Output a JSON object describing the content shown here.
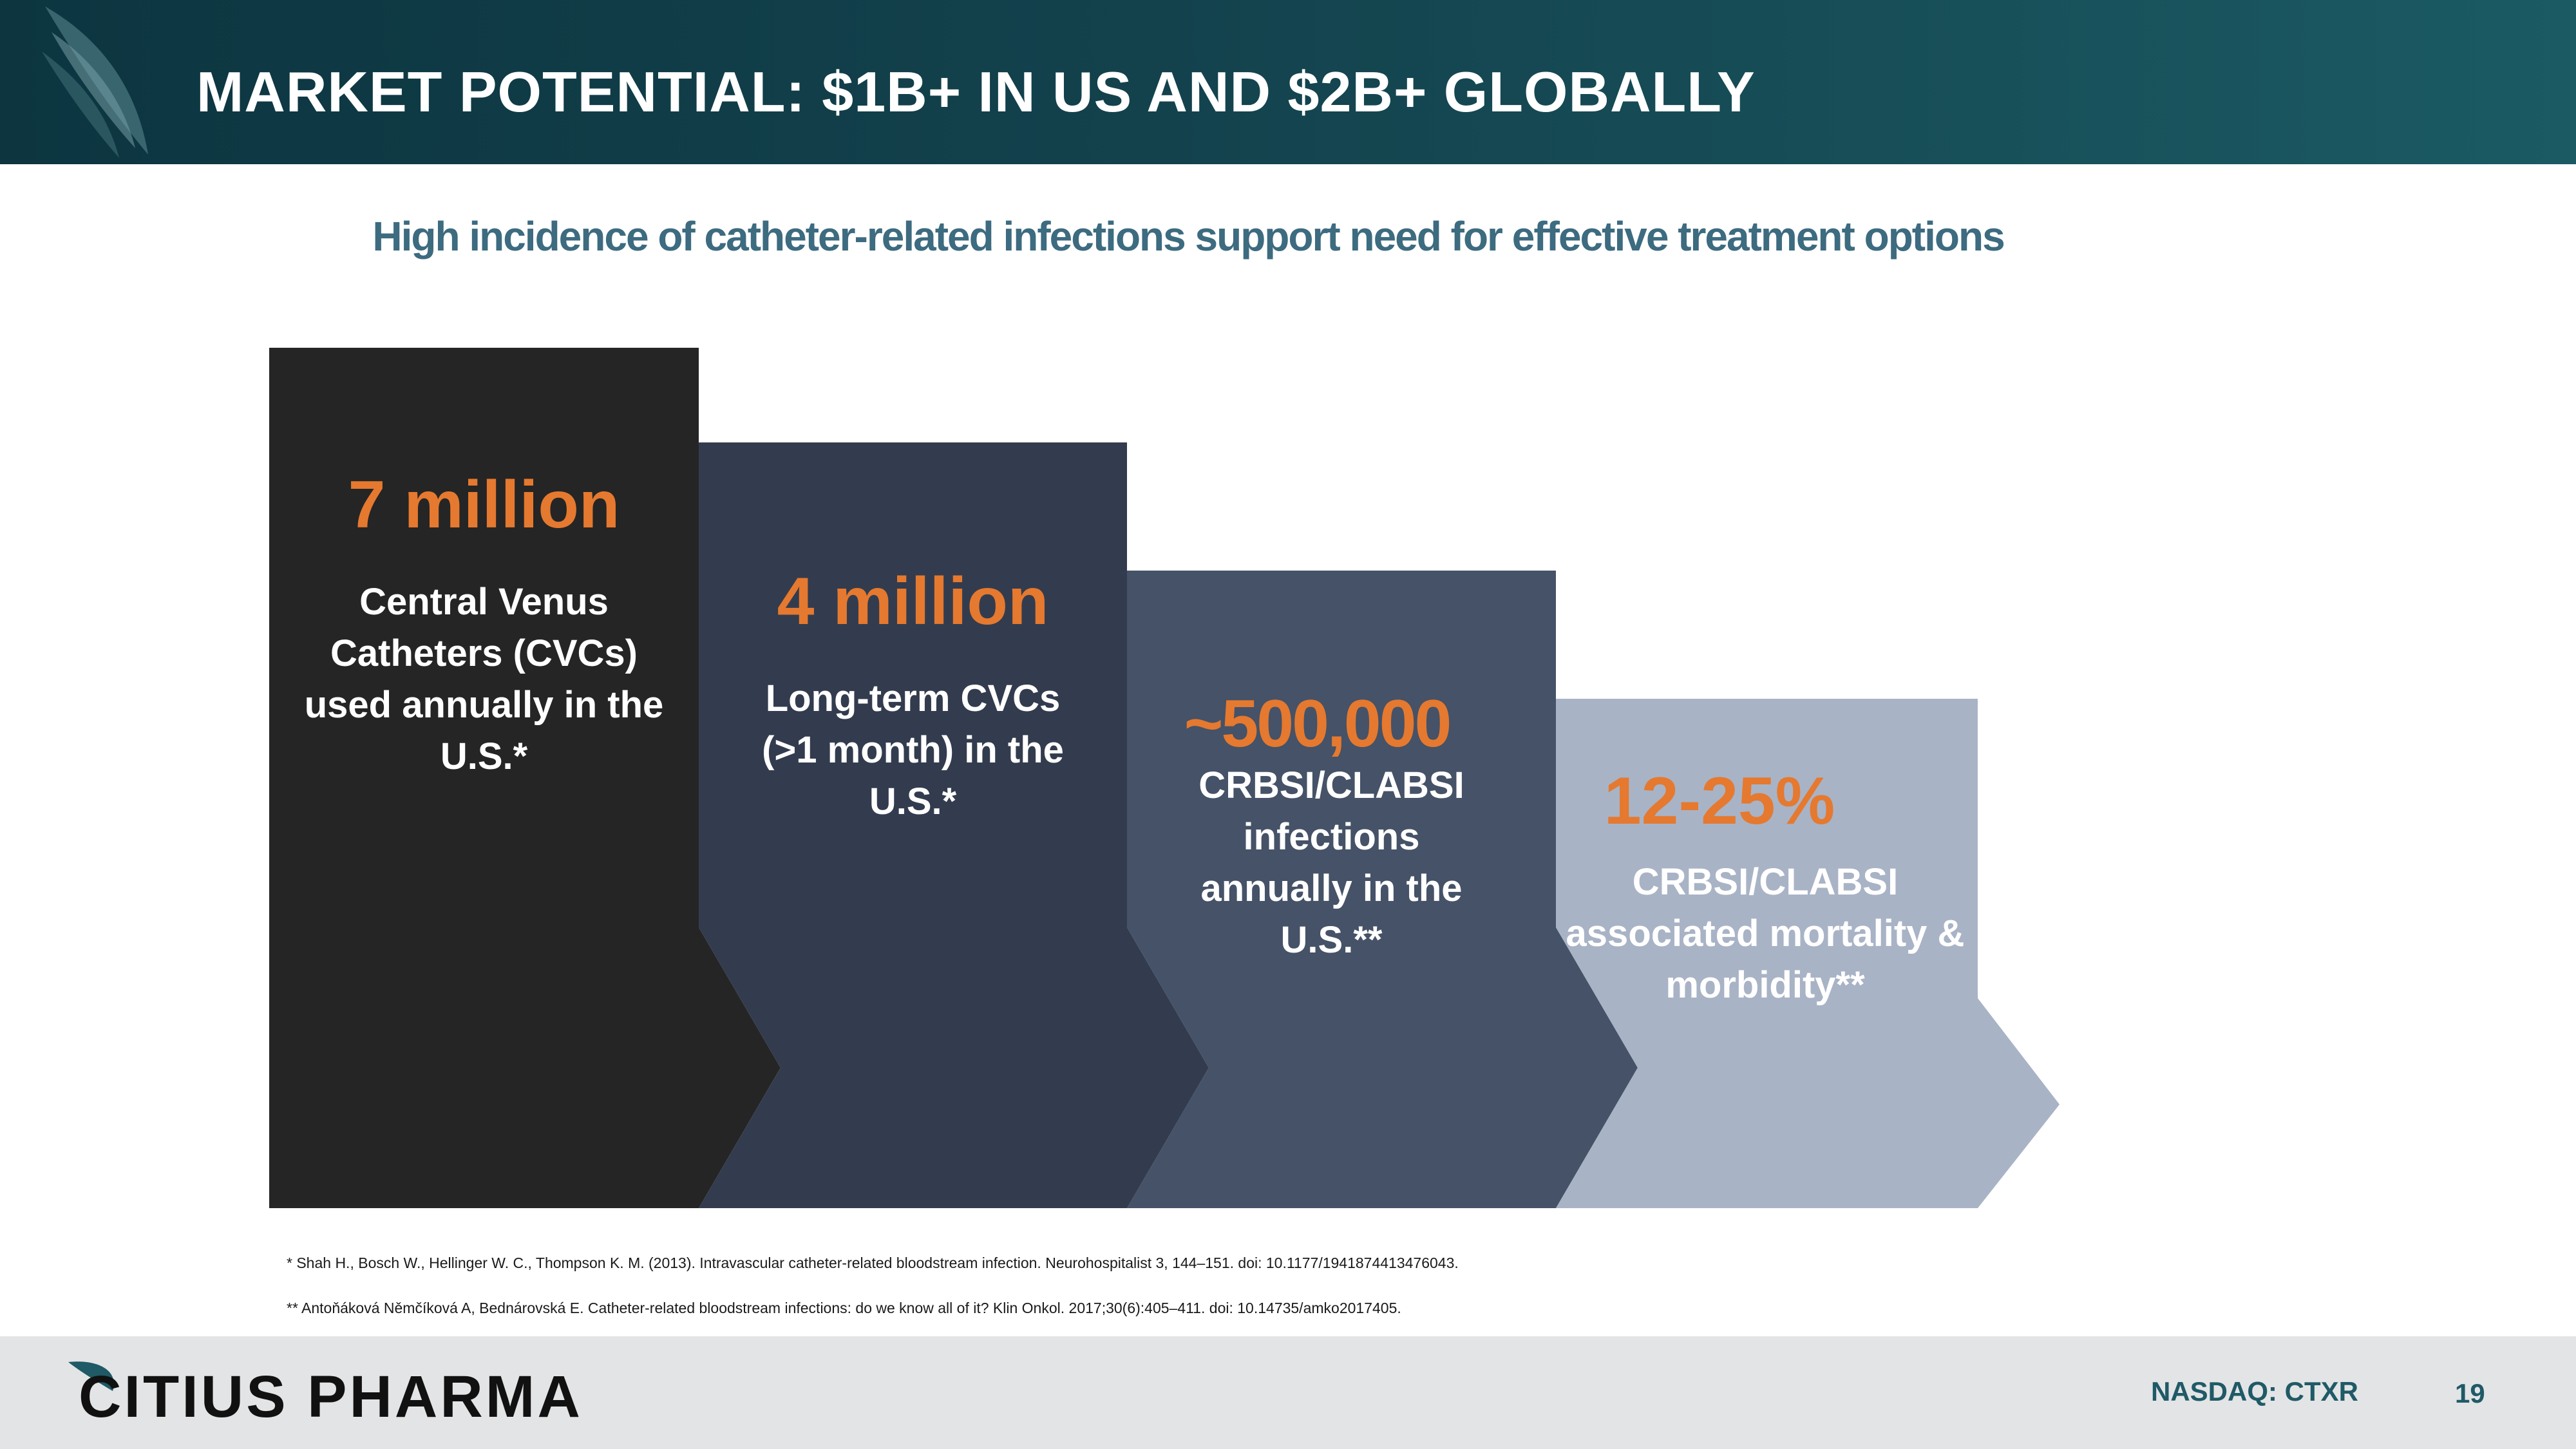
{
  "header": {
    "title": "MARKET POTENTIAL: $1B+ IN US AND $2B+ GLOBALLY"
  },
  "subtitle": "High incidence of catheter-related infections support need for effective treatment options",
  "steps": [
    {
      "stat": "7 million",
      "description": "Central Venus Catheters (CVCs) used annually in the U.S.*",
      "color": "#252525"
    },
    {
      "stat": "4 million",
      "description": "Long-term CVCs (>1 month) in the U.S.*",
      "color": "#333c4e"
    },
    {
      "stat": "~500,000",
      "description": "CRBSI/CLABSI infections annually in the U.S.**",
      "color": "#455267"
    },
    {
      "stat": "12-25%",
      "description": "CRBSI/CLABSI associated mortality & morbidity**",
      "color": "#a9b3c6"
    }
  ],
  "references": [
    "* Shah H., Bosch W., Hellinger W. C., Thompson K. M. (2013). Intravascular catheter-related bloodstream infection. Neurohospitalist 3, 144–151. doi: 10.1177/1941874413476043.",
    "** Antoňáková Němčíková A, Bednárovská E. Catheter-related bloodstream infections: do we know all of it? Klin Onkol. 2017;30(6):405–411. doi: 10.14735/amko2017405."
  ],
  "footer": {
    "brand": "CITIUS PHARMA",
    "ticker": "NASDAQ: CTXR",
    "page_number": "19"
  },
  "colors": {
    "accent": "#e5792f",
    "header_dark": "#0c3540",
    "subtitle": "#3d6b80",
    "brand_teal": "#1f5a66"
  }
}
